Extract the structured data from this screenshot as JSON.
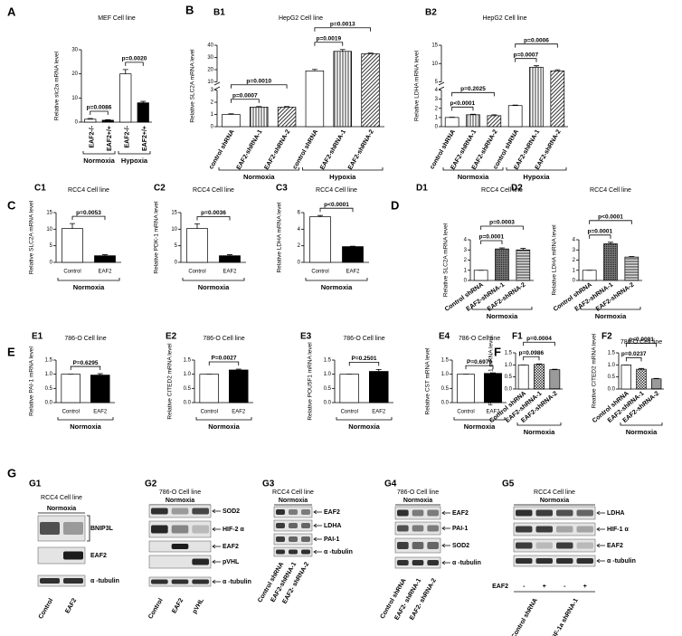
{
  "sections": [
    "B",
    "C",
    "D",
    "E",
    "F",
    "G"
  ],
  "chart_data": [
    {
      "type": "bar",
      "panel": "A",
      "title": "MEF Cell line",
      "ylabel": "Relative slc2a mRNA level",
      "categories": [
        "EAF2-/-",
        "EAF2+/+",
        "EAF2-/-",
        "EAF2+/+"
      ],
      "values": [
        1.2,
        0.8,
        20,
        8
      ],
      "errors": [
        0.3,
        0.2,
        1.8,
        0.6
      ],
      "fills": [
        "white",
        "black",
        "white",
        "black"
      ],
      "ylim": [
        0,
        30
      ],
      "yticks": [
        0,
        10,
        20,
        30
      ],
      "groups": [
        "Normoxia",
        "Hypoxia"
      ],
      "brackets": [
        {
          "text": "p=0.0086",
          "between": [
            0,
            1
          ]
        },
        {
          "text": "p=0.0020",
          "between": [
            2,
            3
          ]
        }
      ]
    },
    {
      "type": "bar",
      "panel": "B1",
      "title": "HepG2 Cell line",
      "ylabel": "Relative SLC2A mRNA level",
      "categories": [
        "control shRNA",
        "EAF2-shRNA-1",
        "EAF2-shRNA-2",
        "control shRNA",
        "EAF2-shRNA-1",
        "EAF2-shRNA-2"
      ],
      "values": [
        1.0,
        1.6,
        1.6,
        19,
        35,
        33
      ],
      "errors": [
        0.05,
        0.05,
        0.05,
        1.2,
        1.5,
        0.6
      ],
      "fills": [
        "white",
        "vstripe",
        "diag",
        "white",
        "vstripe",
        "diag"
      ],
      "ylim": [
        0,
        40
      ],
      "ybreak": [
        3,
        10
      ],
      "yticks": [
        0,
        1,
        2,
        3,
        10,
        20,
        30,
        40
      ],
      "groups": [
        "Normoxia",
        "Hypoxia"
      ],
      "brackets": [
        {
          "text": "p=0.0007",
          "between": [
            0,
            1
          ]
        },
        {
          "text": "p=0.0010",
          "between": [
            0,
            2
          ]
        },
        {
          "text": "p=0.0019",
          "between": [
            3,
            4
          ]
        },
        {
          "text": "p=0.0013",
          "between": [
            3,
            5
          ]
        }
      ]
    },
    {
      "type": "bar",
      "panel": "B2",
      "title": "HepG2 Cell line",
      "ylabel": "Relative LDHA mRNA level",
      "categories": [
        "control shRNA",
        "EAF2-shRNA-1",
        "EAF2-shRNA-2",
        "control shRNA",
        "EAF2-shRNA-1",
        "EAF2-shRNA-2"
      ],
      "values": [
        1.0,
        1.3,
        1.2,
        2.3,
        9,
        8
      ],
      "errors": [
        0.03,
        0.05,
        0.1,
        0.05,
        0.4,
        0.3
      ],
      "fills": [
        "white",
        "vstripe",
        "diag",
        "white",
        "vstripe",
        "diag"
      ],
      "ylim": [
        0,
        15
      ],
      "ybreak": [
        4,
        5
      ],
      "yticks": [
        0,
        1,
        2,
        3,
        4,
        5,
        10,
        15
      ],
      "groups": [
        "Normoxia",
        "Hypoxia"
      ],
      "brackets": [
        {
          "text": "p<0.0001",
          "between": [
            0,
            1
          ]
        },
        {
          "text": "p=0.2025",
          "between": [
            0,
            2
          ]
        },
        {
          "text": "p=0.0007",
          "between": [
            3,
            4
          ]
        },
        {
          "text": "p=0.0006",
          "between": [
            3,
            5
          ]
        }
      ]
    },
    {
      "type": "bar",
      "panel": "C1",
      "title": "RCC4 Cell line",
      "ylabel": "Relative SLC2A mRNA level",
      "categories": [
        "Control",
        "EAF2"
      ],
      "values": [
        10.2,
        2.0
      ],
      "errors": [
        1.5,
        0.3
      ],
      "fills": [
        "white",
        "black"
      ],
      "ylim": [
        0,
        15
      ],
      "yticks": [
        0,
        5,
        10,
        15
      ],
      "groups": [
        "Normoxia"
      ],
      "brackets": [
        {
          "text": "p=0.0053",
          "between": [
            0,
            1
          ]
        }
      ]
    },
    {
      "type": "bar",
      "panel": "C2",
      "title": "RCC4 Cell line",
      "ylabel": "Relative PDK-1 mRNA level",
      "categories": [
        "Control",
        "EAF2"
      ],
      "values": [
        10.2,
        2.0
      ],
      "errors": [
        1.4,
        0.3
      ],
      "fills": [
        "white",
        "black"
      ],
      "ylim": [
        0,
        15
      ],
      "yticks": [
        0,
        5,
        10,
        15
      ],
      "groups": [
        "Normoxia"
      ],
      "brackets": [
        {
          "text": "p=0.0036",
          "between": [
            0,
            1
          ]
        }
      ]
    },
    {
      "type": "bar",
      "panel": "C3",
      "title": "RCC4 Cell line",
      "ylabel": "Relative LDHA mRNA level",
      "categories": [
        "Control",
        "EAF2"
      ],
      "values": [
        5.5,
        1.9
      ],
      "errors": [
        0.15,
        0.05
      ],
      "fills": [
        "white",
        "black"
      ],
      "ylim": [
        0,
        6
      ],
      "yticks": [
        0,
        2,
        4,
        6
      ],
      "groups": [
        "Normoxia"
      ],
      "brackets": [
        {
          "text": "p<0.0001",
          "between": [
            0,
            1
          ]
        }
      ]
    },
    {
      "type": "bar",
      "panel": "D1",
      "title": "RCC4 Cell line",
      "ylabel": "Relative SLC2A mRNA level",
      "categories": [
        "Control shRNA",
        "EAF2-shRNA-1",
        "EAF2-shRNA-2"
      ],
      "values": [
        1.0,
        3.1,
        3.0
      ],
      "errors": [
        0,
        0.1,
        0.15
      ],
      "fills": [
        "white",
        "dots",
        "gstripe"
      ],
      "ylim": [
        0,
        4
      ],
      "yticks": [
        0,
        1,
        2,
        3,
        4
      ],
      "groups": [
        "Normoxia"
      ],
      "brackets": [
        {
          "text": "p=0.0001",
          "between": [
            0,
            1
          ]
        },
        {
          "text": "p=0.0003",
          "between": [
            0,
            2
          ]
        }
      ]
    },
    {
      "type": "bar",
      "panel": "D2",
      "title": "RCC4 Cell line",
      "ylabel": "Relative LDHA mRNA level",
      "categories": [
        "Control shRNA",
        "EAF2-shRNA-1",
        "EAF2-shRNA-2"
      ],
      "values": [
        1.0,
        3.6,
        2.3
      ],
      "errors": [
        0,
        0.15,
        0.05
      ],
      "fills": [
        "white",
        "dots",
        "gstripe"
      ],
      "ylim": [
        0,
        4
      ],
      "yticks": [
        0,
        1,
        2,
        3,
        4
      ],
      "groups": [
        "Normoxia"
      ],
      "brackets": [
        {
          "text": "p=0.0001",
          "between": [
            0,
            1
          ]
        },
        {
          "text": "p<0.0001",
          "between": [
            0,
            2
          ]
        }
      ]
    },
    {
      "type": "bar",
      "panel": "E1",
      "title": "786-O Cell line",
      "ylabel": "Relative PAI-1 mRNA level",
      "categories": [
        "Control",
        "EAF2"
      ],
      "values": [
        1.0,
        0.97
      ],
      "errors": [
        0,
        0.05
      ],
      "fills": [
        "white",
        "black"
      ],
      "ylim": [
        0,
        1.5
      ],
      "yticks": [
        {
          "value": 0,
          "label": "0.0"
        },
        {
          "value": 0.5,
          "label": "0.5"
        },
        {
          "value": 1,
          "label": "1.0"
        },
        {
          "value": 1.5,
          "label": "1.5"
        }
      ],
      "groups": [
        "Normoxia"
      ],
      "brackets": [
        {
          "text": "P=0.6295",
          "between": [
            0,
            1
          ]
        }
      ]
    },
    {
      "type": "bar",
      "panel": "E2",
      "title": "786-O Cell line",
      "ylabel": "Relative CITED2 mRNA level",
      "categories": [
        "Control",
        "EAF2"
      ],
      "values": [
        1.0,
        1.15
      ],
      "errors": [
        0,
        0.03
      ],
      "fills": [
        "white",
        "black"
      ],
      "ylim": [
        0,
        1.5
      ],
      "yticks": [
        {
          "value": 0,
          "label": "0.0"
        },
        {
          "value": 0.5,
          "label": "0.5"
        },
        {
          "value": 1,
          "label": "1.0"
        },
        {
          "value": 1.5,
          "label": "1.5"
        }
      ],
      "groups": [
        "Normoxia"
      ],
      "brackets": [
        {
          "text": "P=0.0027",
          "between": [
            0,
            1
          ]
        }
      ]
    },
    {
      "type": "bar",
      "panel": "E3",
      "title": "786-O Cell line",
      "ylabel": "Relative POU5F1 mRNA level",
      "categories": [
        "Control",
        "EAF2"
      ],
      "values": [
        1.0,
        1.1
      ],
      "errors": [
        0,
        0.07
      ],
      "fills": [
        "white",
        "black"
      ],
      "ylim": [
        0,
        1.5
      ],
      "yticks": [
        {
          "value": 0,
          "label": "0.0"
        },
        {
          "value": 0.5,
          "label": "0.5"
        },
        {
          "value": 1,
          "label": "1.0"
        },
        {
          "value": 1.5,
          "label": "1.5"
        }
      ],
      "groups": [
        "Normoxia"
      ],
      "brackets": [
        {
          "text": "P=0.2501",
          "between": [
            0,
            1
          ]
        }
      ]
    },
    {
      "type": "bar",
      "panel": "E4",
      "title": "786-O Cell line",
      "ylabel": "Relative CST mRNA level",
      "categories": [
        "Control",
        "EAF2"
      ],
      "values": [
        1.0,
        1.03
      ],
      "errors": [
        0,
        0.02
      ],
      "fills": [
        "white",
        "black"
      ],
      "ylim": [
        0,
        1.5
      ],
      "yticks": [
        {
          "value": 0,
          "label": "0.0"
        },
        {
          "value": 0.5,
          "label": "0.5"
        },
        {
          "value": 1,
          "label": "1.0"
        },
        {
          "value": 1.5,
          "label": "1.5"
        }
      ],
      "groups": [
        "Normoxia"
      ],
      "brackets": [
        {
          "text": "P=0.6970",
          "between": [
            0,
            1
          ]
        }
      ]
    },
    {
      "type": "bar",
      "panel": "F1",
      "ylabel": "Relative PAI-1 mRNA level",
      "categories": [
        "Control shRNA",
        "EAF2-shRNA-1",
        "EAF2-shRNA-2"
      ],
      "values": [
        1.0,
        1.02,
        0.8
      ],
      "errors": [
        0,
        0.02,
        0.02
      ],
      "fills": [
        "white",
        "check",
        "hstripe"
      ],
      "ylim": [
        0,
        1.5
      ],
      "yticks": [
        {
          "value": 0,
          "label": "0.0"
        },
        {
          "value": 0.5,
          "label": "0.5"
        },
        {
          "value": 1,
          "label": "1.0"
        },
        {
          "value": 1.5,
          "label": "1.5"
        }
      ],
      "groups": [
        "Normoxia"
      ],
      "brackets": [
        {
          "text": "p=0.0986",
          "between": [
            0,
            1
          ]
        },
        {
          "text": "p=0.0004",
          "between": [
            0,
            2
          ]
        }
      ]
    },
    {
      "type": "bar",
      "panel": "F2",
      "title": "786-O Cell line",
      "ylabel": "Reative CITED2 mRNA level",
      "categories": [
        "Control shRNA",
        "EAF2-shRNA-1",
        "EAF2-shRNA-2"
      ],
      "values": [
        1.0,
        0.82,
        0.42
      ],
      "errors": [
        0,
        0.03,
        0.02
      ],
      "fills": [
        "white",
        "check",
        "hstripe"
      ],
      "ylim": [
        0,
        1.5
      ],
      "yticks": [
        {
          "value": 0,
          "label": "0.0"
        },
        {
          "value": 0.5,
          "label": "0.5"
        },
        {
          "value": 1,
          "label": "1.0"
        },
        {
          "value": 1.5,
          "label": "1.5"
        }
      ],
      "groups": [
        "Normoxia"
      ],
      "brackets": [
        {
          "text": "p=0.0237",
          "between": [
            0,
            1
          ]
        },
        {
          "text": "p<0.0001",
          "between": [
            0,
            2
          ]
        }
      ]
    }
  ],
  "blots": [
    {
      "panel": "G1",
      "title": "RCC4 Cell line",
      "condition": "Normoxia",
      "proteins": [
        "BNIP3L",
        "EAF2",
        "α -tubulin"
      ],
      "lanes": [
        "Control",
        "EAF2"
      ]
    },
    {
      "panel": "G2",
      "title": "786-O Cell line",
      "condition": "Normoxia",
      "proteins": [
        "SOD2",
        "HIF-2 α",
        "EAF2",
        "pVHL",
        "α -tubulin"
      ],
      "lanes": [
        "Control",
        "EAF2",
        "pVHL"
      ]
    },
    {
      "panel": "G3",
      "title": "RCC4 Cell line",
      "condition": "Normoxia",
      "proteins": [
        "EAF2",
        "LDHA",
        "PAI-1",
        "α -tubulin"
      ],
      "lanes": [
        "Control shRNA",
        "EAF2-shRNA-1",
        "EAF2- shRNA-2"
      ]
    },
    {
      "panel": "G4",
      "title": "786-O Cell line",
      "condition": "Normoxia",
      "proteins": [
        "EAF2",
        "PAI-1",
        "SOD2",
        "α -tubulin"
      ],
      "lanes": [
        "Control shRNA",
        "EAF2- shRNA-1",
        "EAF2- shRNA-2"
      ]
    },
    {
      "panel": "G5",
      "title": "RCC4 Cell line",
      "condition": "Normoxia",
      "proteins": [
        "LDHA",
        "HIF-1 α",
        "EAF2",
        "α -tubulin"
      ],
      "treatment_label": "EAF2",
      "treatment": [
        "-",
        "+",
        "-",
        "+"
      ],
      "lanes": [
        "Control shRNA",
        "HIF-1a shRNA-1"
      ]
    }
  ]
}
